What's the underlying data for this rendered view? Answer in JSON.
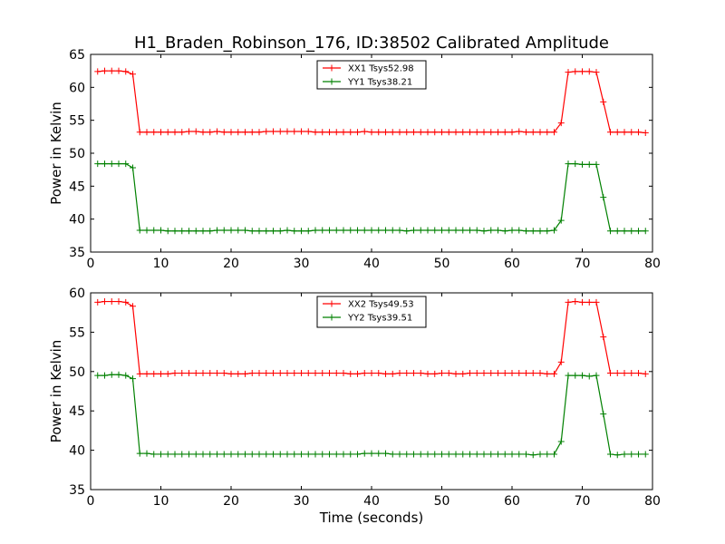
{
  "title": "H1_Braden_Robinson_176, ID:38502 Calibrated Amplitude",
  "chart_data": [
    {
      "type": "line",
      "ylabel": "Power in Kelvin",
      "xlabel": "",
      "xlim": [
        0,
        80
      ],
      "ylim": [
        35,
        65
      ],
      "xticks": [
        0,
        10,
        20,
        30,
        40,
        50,
        60,
        70,
        80
      ],
      "yticks": [
        35,
        40,
        45,
        50,
        55,
        60,
        65
      ],
      "legend_position": "top-center",
      "grid": false,
      "series": [
        {
          "name": "XX1 Tsys52.98",
          "color": "#ff0000",
          "x": [
            1,
            2,
            3,
            4,
            5,
            6,
            7,
            8,
            9,
            10,
            11,
            12,
            13,
            14,
            15,
            16,
            17,
            18,
            19,
            20,
            21,
            22,
            23,
            24,
            25,
            26,
            27,
            28,
            29,
            30,
            31,
            32,
            33,
            34,
            35,
            36,
            37,
            38,
            39,
            40,
            41,
            42,
            43,
            44,
            45,
            46,
            47,
            48,
            49,
            50,
            51,
            52,
            53,
            54,
            55,
            56,
            57,
            58,
            59,
            60,
            61,
            62,
            63,
            64,
            65,
            66,
            67,
            68,
            69,
            70,
            71,
            72,
            73,
            74,
            75,
            76,
            77,
            78,
            79
          ],
          "values": [
            62.4,
            62.5,
            62.5,
            62.5,
            62.4,
            62.0,
            53.2,
            53.2,
            53.2,
            53.2,
            53.2,
            53.2,
            53.2,
            53.3,
            53.3,
            53.2,
            53.2,
            53.3,
            53.2,
            53.2,
            53.2,
            53.2,
            53.2,
            53.2,
            53.3,
            53.3,
            53.3,
            53.3,
            53.3,
            53.3,
            53.3,
            53.2,
            53.2,
            53.2,
            53.2,
            53.2,
            53.2,
            53.2,
            53.3,
            53.2,
            53.2,
            53.2,
            53.2,
            53.2,
            53.2,
            53.2,
            53.2,
            53.2,
            53.2,
            53.2,
            53.2,
            53.2,
            53.2,
            53.2,
            53.2,
            53.2,
            53.2,
            53.2,
            53.2,
            53.2,
            53.3,
            53.2,
            53.2,
            53.2,
            53.2,
            53.2,
            54.6,
            62.3,
            62.4,
            62.4,
            62.4,
            62.3,
            57.8,
            53.2,
            53.2,
            53.2,
            53.2,
            53.2,
            53.1
          ]
        },
        {
          "name": "YY1 Tsys38.21",
          "color": "#008000",
          "x": [
            1,
            2,
            3,
            4,
            5,
            6,
            7,
            8,
            9,
            10,
            11,
            12,
            13,
            14,
            15,
            16,
            17,
            18,
            19,
            20,
            21,
            22,
            23,
            24,
            25,
            26,
            27,
            28,
            29,
            30,
            31,
            32,
            33,
            34,
            35,
            36,
            37,
            38,
            39,
            40,
            41,
            42,
            43,
            44,
            45,
            46,
            47,
            48,
            49,
            50,
            51,
            52,
            53,
            54,
            55,
            56,
            57,
            58,
            59,
            60,
            61,
            62,
            63,
            64,
            65,
            66,
            67,
            68,
            69,
            70,
            71,
            72,
            73,
            74,
            75,
            76,
            77,
            78,
            79
          ],
          "values": [
            48.4,
            48.4,
            48.4,
            48.4,
            48.4,
            47.8,
            38.3,
            38.3,
            38.3,
            38.3,
            38.2,
            38.2,
            38.2,
            38.2,
            38.2,
            38.2,
            38.2,
            38.3,
            38.3,
            38.3,
            38.3,
            38.3,
            38.2,
            38.2,
            38.2,
            38.2,
            38.2,
            38.3,
            38.2,
            38.2,
            38.2,
            38.3,
            38.3,
            38.3,
            38.3,
            38.3,
            38.3,
            38.3,
            38.3,
            38.3,
            38.3,
            38.3,
            38.3,
            38.3,
            38.2,
            38.3,
            38.3,
            38.3,
            38.3,
            38.3,
            38.3,
            38.3,
            38.3,
            38.3,
            38.3,
            38.2,
            38.3,
            38.3,
            38.2,
            38.3,
            38.3,
            38.2,
            38.2,
            38.2,
            38.2,
            38.3,
            39.8,
            48.4,
            48.4,
            48.3,
            48.3,
            48.3,
            43.3,
            38.2,
            38.2,
            38.2,
            38.2,
            38.2,
            38.2
          ]
        }
      ]
    },
    {
      "type": "line",
      "ylabel": "Power in Kelvin",
      "xlabel": "Time (seconds)",
      "xlim": [
        0,
        80
      ],
      "ylim": [
        35,
        60
      ],
      "xticks": [
        0,
        10,
        20,
        30,
        40,
        50,
        60,
        70,
        80
      ],
      "yticks": [
        35,
        40,
        45,
        50,
        55,
        60
      ],
      "legend_position": "top-center",
      "grid": false,
      "series": [
        {
          "name": "XX2 Tsys49.53",
          "color": "#ff0000",
          "x": [
            1,
            2,
            3,
            4,
            5,
            6,
            7,
            8,
            9,
            10,
            11,
            12,
            13,
            14,
            15,
            16,
            17,
            18,
            19,
            20,
            21,
            22,
            23,
            24,
            25,
            26,
            27,
            28,
            29,
            30,
            31,
            32,
            33,
            34,
            35,
            36,
            37,
            38,
            39,
            40,
            41,
            42,
            43,
            44,
            45,
            46,
            47,
            48,
            49,
            50,
            51,
            52,
            53,
            54,
            55,
            56,
            57,
            58,
            59,
            60,
            61,
            62,
            63,
            64,
            65,
            66,
            67,
            68,
            69,
            70,
            71,
            72,
            73,
            74,
            75,
            76,
            77,
            78,
            79
          ],
          "values": [
            58.8,
            58.9,
            58.9,
            58.9,
            58.8,
            58.3,
            49.7,
            49.7,
            49.7,
            49.7,
            49.7,
            49.8,
            49.8,
            49.8,
            49.8,
            49.8,
            49.8,
            49.8,
            49.8,
            49.7,
            49.7,
            49.7,
            49.8,
            49.8,
            49.8,
            49.8,
            49.8,
            49.8,
            49.8,
            49.8,
            49.8,
            49.8,
            49.8,
            49.8,
            49.8,
            49.8,
            49.7,
            49.7,
            49.8,
            49.8,
            49.8,
            49.7,
            49.7,
            49.8,
            49.8,
            49.8,
            49.8,
            49.7,
            49.7,
            49.8,
            49.8,
            49.7,
            49.7,
            49.8,
            49.8,
            49.8,
            49.8,
            49.8,
            49.8,
            49.8,
            49.8,
            49.8,
            49.8,
            49.8,
            49.7,
            49.7,
            51.2,
            58.8,
            58.9,
            58.8,
            58.8,
            58.8,
            54.4,
            49.8,
            49.8,
            49.8,
            49.8,
            49.8,
            49.7
          ]
        },
        {
          "name": "YY2 Tsys39.51",
          "color": "#008000",
          "x": [
            1,
            2,
            3,
            4,
            5,
            6,
            7,
            8,
            9,
            10,
            11,
            12,
            13,
            14,
            15,
            16,
            17,
            18,
            19,
            20,
            21,
            22,
            23,
            24,
            25,
            26,
            27,
            28,
            29,
            30,
            31,
            32,
            33,
            34,
            35,
            36,
            37,
            38,
            39,
            40,
            41,
            42,
            43,
            44,
            45,
            46,
            47,
            48,
            49,
            50,
            51,
            52,
            53,
            54,
            55,
            56,
            57,
            58,
            59,
            60,
            61,
            62,
            63,
            64,
            65,
            66,
            67,
            68,
            69,
            70,
            71,
            72,
            73,
            74,
            75,
            76,
            77,
            78,
            79
          ],
          "values": [
            49.5,
            49.5,
            49.6,
            49.6,
            49.5,
            49.1,
            39.6,
            39.6,
            39.5,
            39.5,
            39.5,
            39.5,
            39.5,
            39.5,
            39.5,
            39.5,
            39.5,
            39.5,
            39.5,
            39.5,
            39.5,
            39.5,
            39.5,
            39.5,
            39.5,
            39.5,
            39.5,
            39.5,
            39.5,
            39.5,
            39.5,
            39.5,
            39.5,
            39.5,
            39.5,
            39.5,
            39.5,
            39.5,
            39.6,
            39.6,
            39.6,
            39.6,
            39.5,
            39.5,
            39.5,
            39.5,
            39.5,
            39.5,
            39.5,
            39.5,
            39.5,
            39.5,
            39.5,
            39.5,
            39.5,
            39.5,
            39.5,
            39.5,
            39.5,
            39.5,
            39.5,
            39.5,
            39.4,
            39.5,
            39.5,
            39.5,
            41.1,
            49.5,
            49.5,
            49.5,
            49.4,
            49.5,
            44.6,
            39.5,
            39.4,
            39.5,
            39.5,
            39.5,
            39.5
          ]
        }
      ]
    }
  ]
}
